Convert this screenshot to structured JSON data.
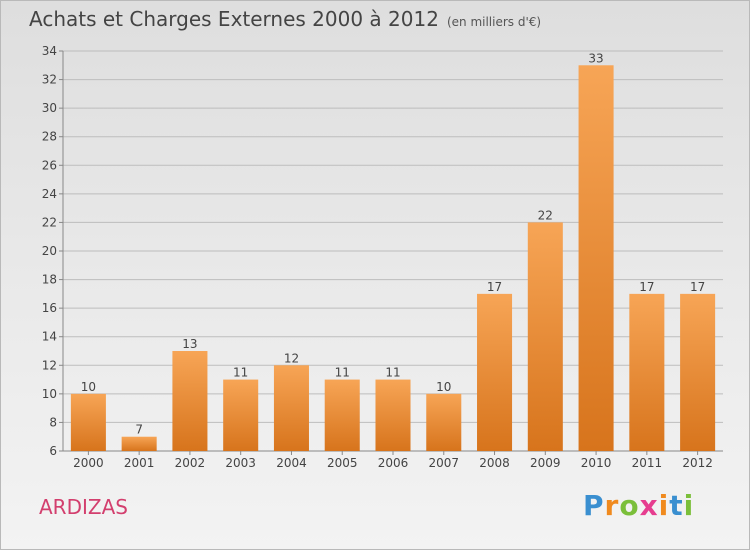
{
  "title": "Achats et Charges Externes 2000 à 2012",
  "unit_note": "(en milliers d'€)",
  "commune": "ARDIZAS",
  "brand": {
    "letters": [
      "P",
      "r",
      "o",
      "x",
      "i",
      "t",
      "i"
    ],
    "colors": [
      "#3a8fd0",
      "#f08a1e",
      "#7bbf3a",
      "#e63d8f",
      "#f08a1e",
      "#3a8fd0",
      "#7bbf3a"
    ]
  },
  "chart_data": {
    "type": "bar",
    "categories": [
      "2000",
      "2001",
      "2002",
      "2003",
      "2004",
      "2005",
      "2006",
      "2007",
      "2008",
      "2009",
      "2010",
      "2011",
      "2012"
    ],
    "values": [
      10,
      7,
      13,
      11,
      12,
      11,
      11,
      10,
      17,
      22,
      33,
      17,
      17
    ],
    "title": "Achats et Charges Externes 2000 à 2012",
    "subtitle": "(en milliers d'€)",
    "xlabel": "",
    "ylabel": "",
    "ylim": [
      6,
      34
    ],
    "yticks": [
      6,
      8,
      10,
      12,
      14,
      16,
      18,
      20,
      22,
      24,
      26,
      28,
      30,
      32,
      34
    ],
    "grid": true,
    "bar_color": "#f0963c"
  }
}
